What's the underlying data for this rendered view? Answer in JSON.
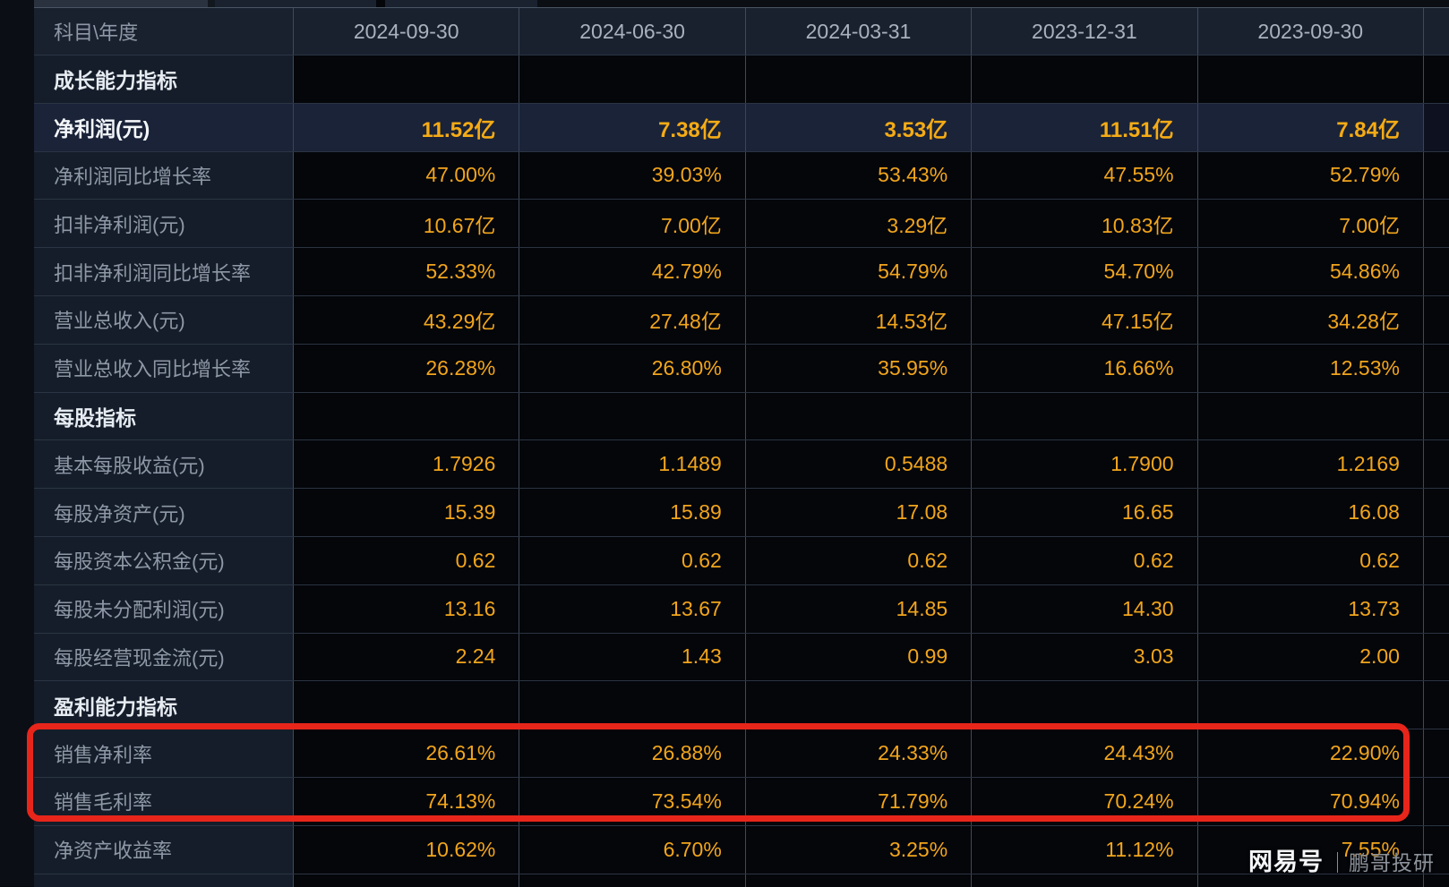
{
  "table": {
    "header": {
      "label": "科目\\年度",
      "columns": [
        "2024-09-30",
        "2024-06-30",
        "2024-03-31",
        "2023-12-31",
        "2023-09-30"
      ]
    },
    "rows": [
      {
        "type": "section",
        "label": "成长能力指标",
        "values": [
          "",
          "",
          "",
          "",
          ""
        ]
      },
      {
        "type": "highlight",
        "label": "净利润(元)",
        "values": [
          "11.52亿",
          "7.38亿",
          "3.53亿",
          "11.51亿",
          "7.84亿"
        ]
      },
      {
        "type": "data",
        "label": "净利润同比增长率",
        "values": [
          "47.00%",
          "39.03%",
          "53.43%",
          "47.55%",
          "52.79%"
        ]
      },
      {
        "type": "data",
        "label": "扣非净利润(元)",
        "values": [
          "10.67亿",
          "7.00亿",
          "3.29亿",
          "10.83亿",
          "7.00亿"
        ]
      },
      {
        "type": "data",
        "label": "扣非净利润同比增长率",
        "values": [
          "52.33%",
          "42.79%",
          "54.79%",
          "54.70%",
          "54.86%"
        ]
      },
      {
        "type": "data",
        "label": "营业总收入(元)",
        "values": [
          "43.29亿",
          "27.48亿",
          "14.53亿",
          "47.15亿",
          "34.28亿"
        ]
      },
      {
        "type": "data",
        "label": "营业总收入同比增长率",
        "values": [
          "26.28%",
          "26.80%",
          "35.95%",
          "16.66%",
          "12.53%"
        ]
      },
      {
        "type": "section",
        "label": "每股指标",
        "values": [
          "",
          "",
          "",
          "",
          ""
        ]
      },
      {
        "type": "data",
        "label": "基本每股收益(元)",
        "values": [
          "1.7926",
          "1.1489",
          "0.5488",
          "1.7900",
          "1.2169"
        ]
      },
      {
        "type": "data",
        "label": "每股净资产(元)",
        "values": [
          "15.39",
          "15.89",
          "17.08",
          "16.65",
          "16.08"
        ]
      },
      {
        "type": "data",
        "label": "每股资本公积金(元)",
        "values": [
          "0.62",
          "0.62",
          "0.62",
          "0.62",
          "0.62"
        ]
      },
      {
        "type": "data",
        "label": "每股未分配利润(元)",
        "values": [
          "13.16",
          "13.67",
          "14.85",
          "14.30",
          "13.73"
        ]
      },
      {
        "type": "data",
        "label": "每股经营现金流(元)",
        "values": [
          "2.24",
          "1.43",
          "0.99",
          "3.03",
          "2.00"
        ]
      },
      {
        "type": "section",
        "label": "盈利能力指标",
        "values": [
          "",
          "",
          "",
          "",
          ""
        ]
      },
      {
        "type": "data",
        "label": "销售净利率",
        "values": [
          "26.61%",
          "26.88%",
          "24.33%",
          "24.43%",
          "22.90%"
        ]
      },
      {
        "type": "data",
        "label": "销售毛利率",
        "values": [
          "74.13%",
          "73.54%",
          "71.79%",
          "70.24%",
          "70.94%"
        ]
      },
      {
        "type": "data",
        "label": "净资产收益率",
        "values": [
          "10.62%",
          "6.70%",
          "3.25%",
          "11.12%",
          "7.55%"
        ]
      }
    ]
  },
  "annotation": {
    "shape": "rounded-rectangle",
    "color": "#e8251a",
    "rows_enclosed": [
      "销售净利率",
      "销售毛利率"
    ]
  },
  "watermark": {
    "brand": "网易号",
    "author": "｜鹏哥投研"
  },
  "colors": {
    "value_orange": "#f2a51c",
    "label_grey": "#8e98a6",
    "section_white": "#e7ecf2",
    "cell_black": "#04060a",
    "label_navy": "#151d2a",
    "highlight_navy": "#1a2338",
    "border_grey": "#3f4a58"
  }
}
